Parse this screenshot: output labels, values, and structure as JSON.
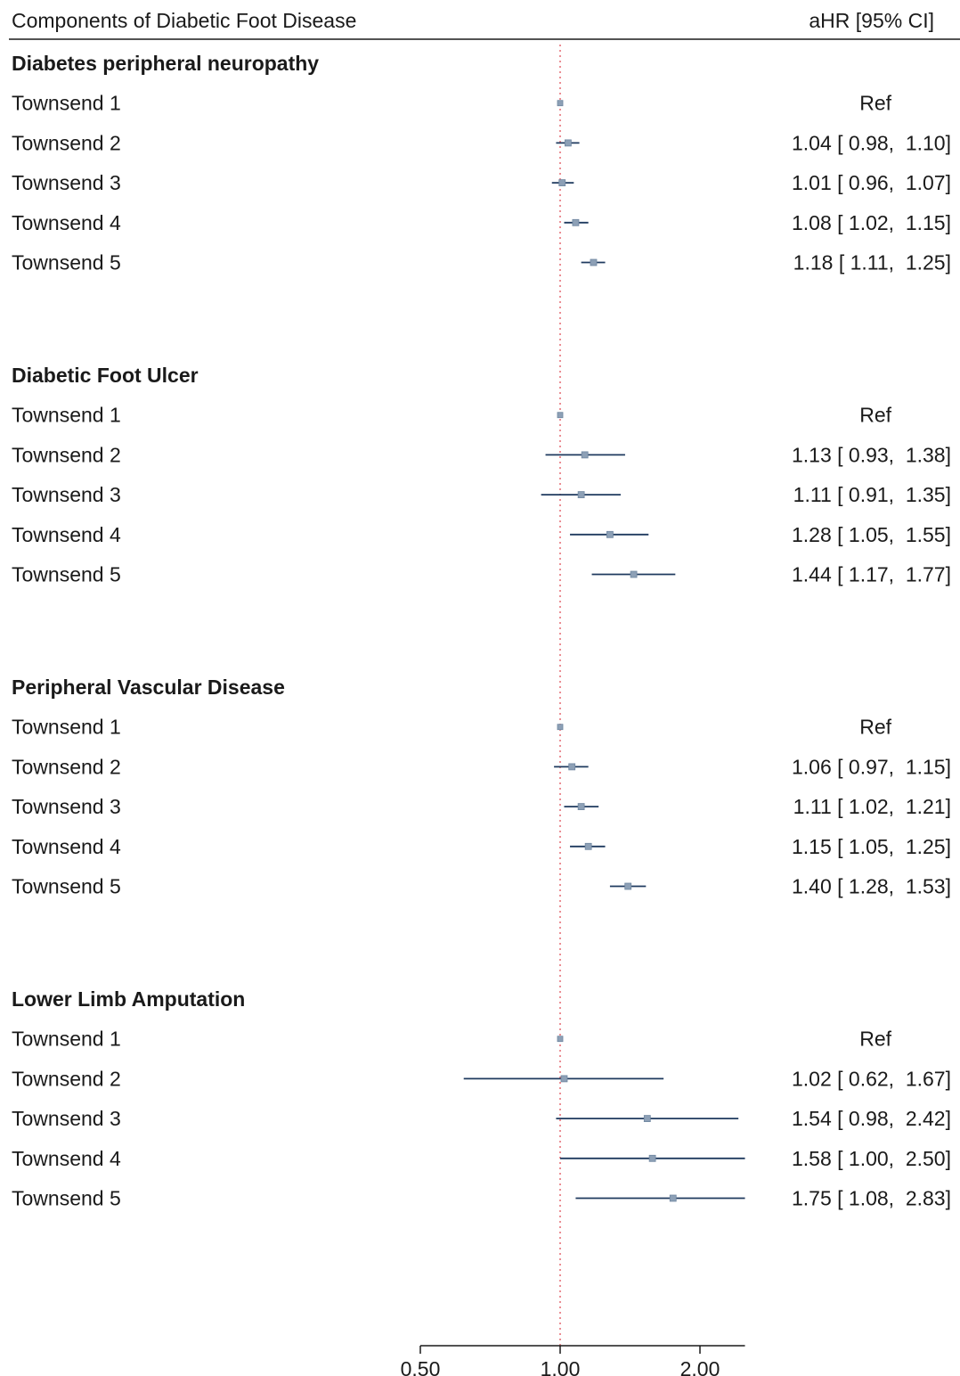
{
  "header": {
    "left": "Components of Diabetic Foot Disease",
    "right": "aHR [95% CI]"
  },
  "chart_data": {
    "type": "forest",
    "xscale": "log2",
    "xlim": [
      0.5,
      2.5
    ],
    "ref_line": 1.0,
    "x_ticks": [
      "0.50",
      "1.00",
      "2.00"
    ],
    "x_tick_values": [
      0.5,
      1.0,
      2.0
    ],
    "colors": {
      "marker": "#8da0b6",
      "ci_line": "#1f3a5f",
      "ref_line": "#e0525a",
      "rule": "#1a1a1a"
    },
    "groups": [
      {
        "title": "Diabetes peripheral neuropathy",
        "rows": [
          {
            "label": "Townsend 1",
            "est": 1.0,
            "lo": null,
            "hi": null,
            "text": "Ref"
          },
          {
            "label": "Townsend 2",
            "est": 1.04,
            "lo": 0.98,
            "hi": 1.1,
            "text": "1.04 [ 0.98,  1.10]"
          },
          {
            "label": "Townsend 3",
            "est": 1.01,
            "lo": 0.96,
            "hi": 1.07,
            "text": "1.01 [ 0.96,  1.07]"
          },
          {
            "label": "Townsend 4",
            "est": 1.08,
            "lo": 1.02,
            "hi": 1.15,
            "text": "1.08 [ 1.02,  1.15]"
          },
          {
            "label": "Townsend 5",
            "est": 1.18,
            "lo": 1.11,
            "hi": 1.25,
            "text": "1.18 [ 1.11,  1.25]"
          }
        ]
      },
      {
        "title": "Diabetic Foot Ulcer",
        "rows": [
          {
            "label": "Townsend 1",
            "est": 1.0,
            "lo": null,
            "hi": null,
            "text": "Ref"
          },
          {
            "label": "Townsend 2",
            "est": 1.13,
            "lo": 0.93,
            "hi": 1.38,
            "text": "1.13 [ 0.93,  1.38]"
          },
          {
            "label": "Townsend 3",
            "est": 1.11,
            "lo": 0.91,
            "hi": 1.35,
            "text": "1.11 [ 0.91,  1.35]"
          },
          {
            "label": "Townsend 4",
            "est": 1.28,
            "lo": 1.05,
            "hi": 1.55,
            "text": "1.28 [ 1.05,  1.55]"
          },
          {
            "label": "Townsend 5",
            "est": 1.44,
            "lo": 1.17,
            "hi": 1.77,
            "text": "1.44 [ 1.17,  1.77]"
          }
        ]
      },
      {
        "title": "Peripheral Vascular Disease",
        "rows": [
          {
            "label": "Townsend 1",
            "est": 1.0,
            "lo": null,
            "hi": null,
            "text": "Ref"
          },
          {
            "label": "Townsend 2",
            "est": 1.06,
            "lo": 0.97,
            "hi": 1.15,
            "text": "1.06 [ 0.97,  1.15]"
          },
          {
            "label": "Townsend 3",
            "est": 1.11,
            "lo": 1.02,
            "hi": 1.21,
            "text": "1.11 [ 1.02,  1.21]"
          },
          {
            "label": "Townsend 4",
            "est": 1.15,
            "lo": 1.05,
            "hi": 1.25,
            "text": "1.15 [ 1.05,  1.25]"
          },
          {
            "label": "Townsend 5",
            "est": 1.4,
            "lo": 1.28,
            "hi": 1.53,
            "text": "1.40 [ 1.28,  1.53]"
          }
        ]
      },
      {
        "title": "Lower Limb Amputation",
        "rows": [
          {
            "label": "Townsend 1",
            "est": 1.0,
            "lo": null,
            "hi": null,
            "text": "Ref"
          },
          {
            "label": "Townsend 2",
            "est": 1.02,
            "lo": 0.62,
            "hi": 1.67,
            "text": "1.02 [ 0.62,  1.67]"
          },
          {
            "label": "Townsend 3",
            "est": 1.54,
            "lo": 0.98,
            "hi": 2.42,
            "text": "1.54 [ 0.98,  2.42]"
          },
          {
            "label": "Townsend 4",
            "est": 1.58,
            "lo": 1.0,
            "hi": 2.5,
            "text": "1.58 [ 1.00,  2.50]"
          },
          {
            "label": "Townsend 5",
            "est": 1.75,
            "lo": 1.08,
            "hi": 2.83,
            "text": "1.75 [ 1.08,  2.83]"
          }
        ]
      }
    ]
  }
}
